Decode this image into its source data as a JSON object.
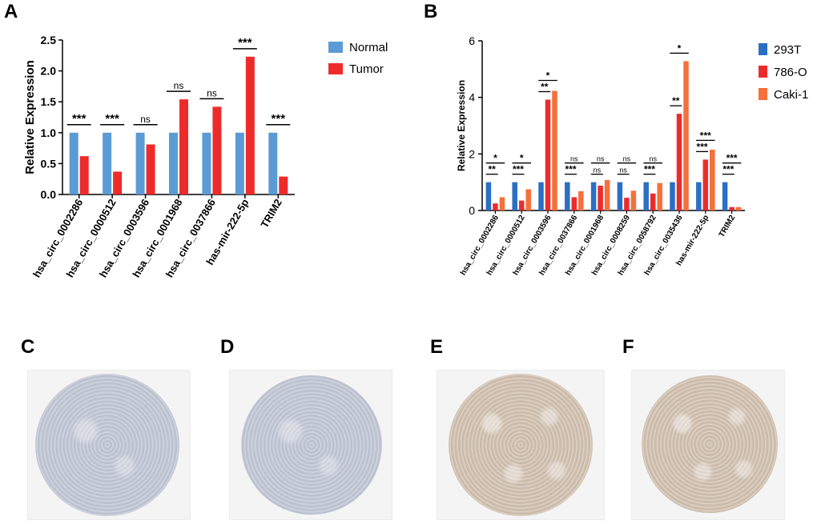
{
  "panels": {
    "A": "A",
    "B": "B",
    "C": "C",
    "D": "D",
    "E": "E",
    "F": "F"
  },
  "colors": {
    "normal": "#5b9bd5",
    "tumor": "#ee2b2b",
    "t293": "#2a6fc4",
    "o786": "#ee2b2b",
    "caki": "#f5703a"
  },
  "chart_data": [
    {
      "type": "bar",
      "panel": "A",
      "categories": [
        "hsa_circ_0002286",
        "hsa_circ_0000512",
        "hsa_circ_0003596",
        "hsa_circ_0001968",
        "hsa_circ_0037866",
        "has-mir-222-5p",
        "TRIM2"
      ],
      "series": [
        {
          "name": "Normal",
          "values": [
            1.0,
            1.0,
            1.0,
            1.0,
            1.0,
            1.0,
            1.0
          ]
        },
        {
          "name": "Tumor",
          "values": [
            0.62,
            0.37,
            0.81,
            1.54,
            1.42,
            2.23,
            0.29
          ]
        }
      ],
      "significance": [
        "***",
        "***",
        "ns",
        "ns",
        "ns",
        "***",
        "***"
      ],
      "ylabel": "Relative Expression",
      "ylim": [
        0,
        2.5
      ],
      "yticks": [
        "0.0",
        "0.5",
        "1.0",
        "1.5",
        "2.0",
        "2.5"
      ],
      "legend_position": "right"
    },
    {
      "type": "bar",
      "panel": "B",
      "categories": [
        "hsa_circ_0002286",
        "hsa_circ_0000512",
        "hsa_circ_0003596",
        "hsa_circ_0037866",
        "hsa_circ_0001968",
        "hsa_circ_0008259",
        "hsa_circ_0058792",
        "hsa_circ_0035436",
        "has-mir-222-5p",
        "TRIM2"
      ],
      "series": [
        {
          "name": "293T",
          "values": [
            1.0,
            1.0,
            1.0,
            1.0,
            1.0,
            1.0,
            1.0,
            1.0,
            1.0,
            1.0
          ]
        },
        {
          "name": "786-O",
          "values": [
            0.25,
            0.35,
            3.92,
            0.47,
            0.88,
            0.45,
            0.6,
            3.42,
            1.8,
            0.12
          ]
        },
        {
          "name": "Caki-1",
          "values": [
            0.47,
            0.75,
            4.23,
            0.68,
            1.08,
            0.7,
            0.97,
            5.28,
            2.15,
            0.12
          ]
        }
      ],
      "significance_786": [
        "**",
        "***",
        "**",
        "***",
        "ns",
        "ns",
        "***",
        "**",
        "***",
        "***"
      ],
      "significance_caki": [
        "*",
        "*",
        "*",
        "ns",
        "ns",
        "ns",
        "ns",
        "*",
        "***",
        "***"
      ],
      "ylabel": "Relative Expression",
      "ylim": [
        0,
        6
      ],
      "yticks": [
        "0",
        "2",
        "4",
        "6"
      ],
      "legend_position": "right"
    }
  ]
}
